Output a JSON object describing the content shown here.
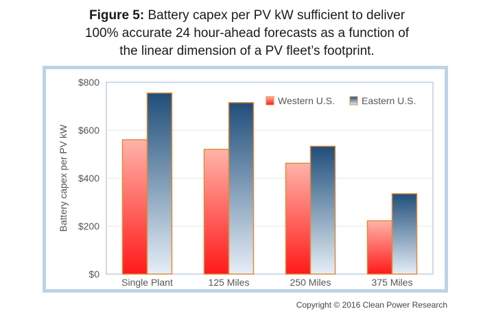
{
  "title": {
    "prefix": "Figure 5:",
    "line1": " Battery capex per PV kW sufficient to deliver",
    "line2": "100% accurate 24 hour-ahead forecasts as a function of",
    "line3": "the linear dimension of a PV fleet’s footprint."
  },
  "copyright": "Copyright © 2016 Clean Power Research",
  "chart_data": {
    "type": "bar",
    "categories": [
      "Single Plant",
      "125 Miles",
      "250 Miles",
      "375 Miles"
    ],
    "series": [
      {
        "name": "Western U.S.",
        "values": [
          560,
          520,
          462,
          222
        ]
      },
      {
        "name": "Eastern U.S.",
        "values": [
          755,
          715,
          533,
          335
        ]
      }
    ],
    "ylabel": "Battery capex per PV kW",
    "ylim": [
      0,
      800
    ],
    "yticks": [
      0,
      200,
      400,
      600,
      800
    ],
    "ytick_labels": [
      "$0",
      "$200",
      "$400",
      "$600",
      "$800"
    ],
    "grid": true,
    "legend": "top-right",
    "colors": {
      "western_top": "#ffb3a8",
      "western_bottom": "#ff1a1a",
      "eastern_top": "#1f4e7a",
      "eastern_bottom": "#e6eef7",
      "bar_outline": "#e08a3a"
    }
  }
}
